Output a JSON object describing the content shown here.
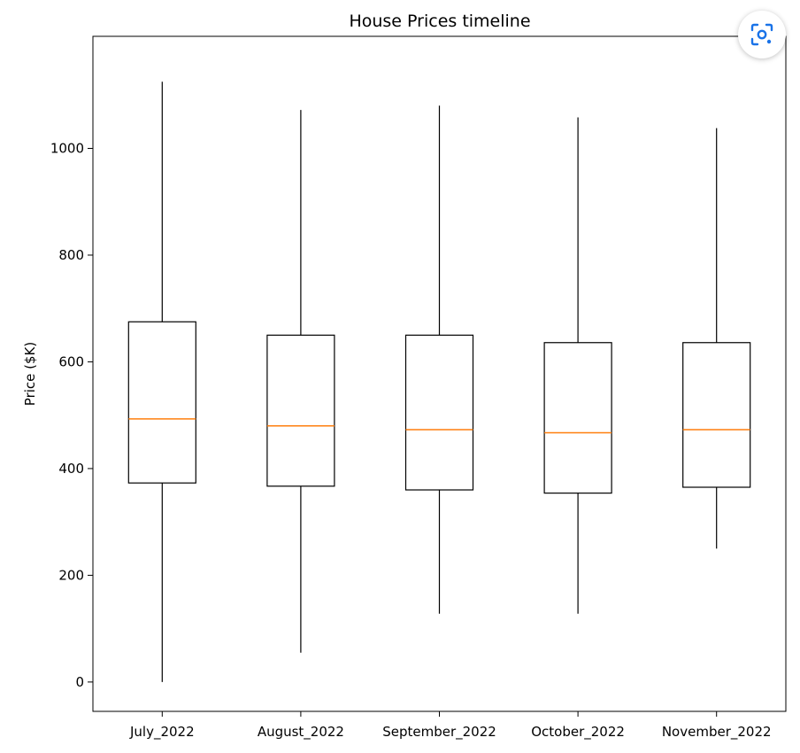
{
  "chart_data": {
    "type": "boxplot",
    "title": "House Prices timeline",
    "xlabel": "",
    "ylabel": "Price ($K)",
    "ylim": [
      -55,
      1210
    ],
    "yticks": [
      0,
      200,
      400,
      600,
      800,
      1000
    ],
    "categories": [
      "July_2022",
      "August_2022",
      "September_2022",
      "October_2022",
      "November_2022"
    ],
    "boxes": [
      {
        "whisker_low": 0,
        "q1": 373,
        "median": 493,
        "q3": 675,
        "whisker_high": 1125
      },
      {
        "whisker_low": 55,
        "q1": 367,
        "median": 480,
        "q3": 650,
        "whisker_high": 1072
      },
      {
        "whisker_low": 128,
        "q1": 360,
        "median": 473,
        "q3": 650,
        "whisker_high": 1080
      },
      {
        "whisker_low": 128,
        "q1": 354,
        "median": 467,
        "q3": 636,
        "whisker_high": 1058
      },
      {
        "whisker_low": 250,
        "q1": 365,
        "median": 473,
        "q3": 636,
        "whisker_high": 1038
      }
    ],
    "grid": false,
    "colors": {
      "box": "#000000",
      "median": "#ff7f0e",
      "axes": "#000000"
    }
  },
  "overlay": {
    "lens_icon": "lens-icon"
  }
}
